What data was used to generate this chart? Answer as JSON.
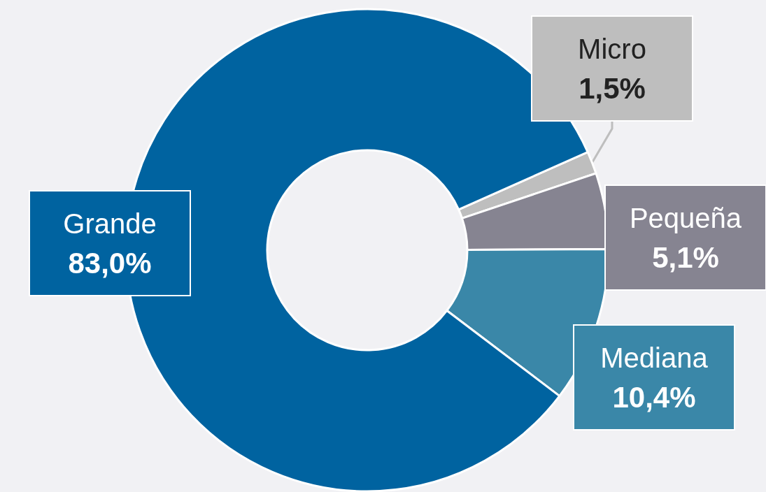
{
  "chart_data": {
    "type": "donut",
    "categories": [
      "Micro",
      "Pequeña",
      "Mediana",
      "Grande"
    ],
    "values": [
      1.5,
      5.1,
      10.4,
      83.0
    ],
    "value_labels": [
      "1,5%",
      "5,1%",
      "10,4%",
      "83,0%"
    ],
    "colors": [
      "#bebebe",
      "#868491",
      "#3a87a8",
      "#0063a0"
    ],
    "legend": false
  }
}
